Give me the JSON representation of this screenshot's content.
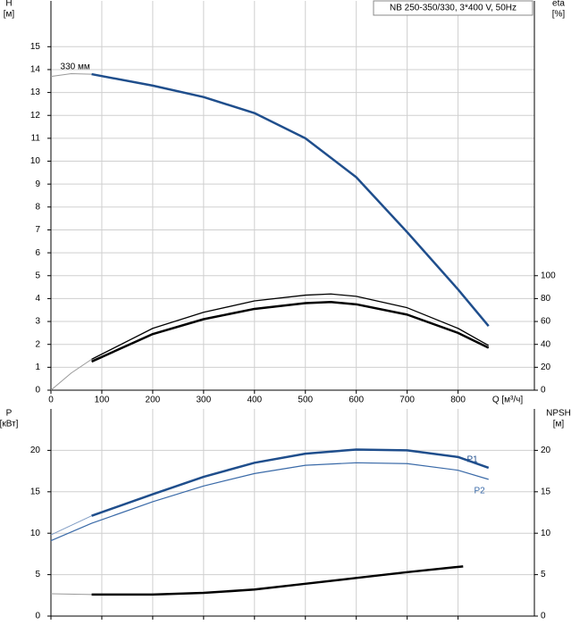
{
  "chart_data": [
    {
      "type": "line",
      "box_label": "NB 250-350/330, 3*400 V, 50Hz",
      "y_label": "H",
      "y_unit": "[м]",
      "y2_label": "eta",
      "y2_unit": "[%]",
      "x_label": "Q [м³/ч]",
      "xlim": [
        0,
        950
      ],
      "xticks": [
        0,
        100,
        200,
        300,
        400,
        500,
        600,
        700,
        800
      ],
      "ylim": [
        0,
        17
      ],
      "yticks": [
        0,
        1,
        2,
        3,
        4,
        5,
        6,
        7,
        8,
        9,
        10,
        11,
        12,
        13,
        14,
        15
      ],
      "y2lim": [
        0,
        340
      ],
      "y2ticks": [
        0,
        20,
        40,
        60,
        80,
        100
      ],
      "grid": true,
      "xtick_labels": true,
      "series": [
        {
          "color": "#999999",
          "width": 1,
          "x": [
            0,
            40,
            80
          ],
          "values": [
            13.7,
            13.82,
            13.8
          ]
        },
        {
          "name": "330 мм",
          "label_at": "start",
          "color": "#1f4e8c",
          "width": 2.5,
          "x": [
            80,
            200,
            300,
            400,
            500,
            600,
            700,
            800,
            860
          ],
          "values": [
            13.8,
            13.3,
            12.8,
            12.1,
            11.0,
            9.3,
            6.9,
            4.4,
            2.8
          ]
        },
        {
          "axis": "y2",
          "color": "#999999",
          "width": 1,
          "x": [
            0,
            40,
            80
          ],
          "values": [
            0,
            15,
            27
          ]
        },
        {
          "axis": "y2",
          "color": "#000000",
          "width": 1.3,
          "x": [
            80,
            200,
            300,
            400,
            500,
            550,
            600,
            700,
            800,
            860
          ],
          "values": [
            27,
            54,
            68,
            78,
            83,
            84,
            82,
            72,
            54,
            39
          ]
        },
        {
          "axis": "y2",
          "color": "#000000",
          "width": 2.5,
          "x": [
            80,
            200,
            300,
            400,
            500,
            550,
            600,
            700,
            800,
            860
          ],
          "values": [
            25,
            49,
            62,
            71,
            76,
            77,
            75,
            66,
            50,
            37
          ]
        }
      ]
    },
    {
      "type": "line",
      "y_label": "P",
      "y_unit": "[кВт]",
      "y2_label": "NPSH",
      "y2_unit": "[м]",
      "xlim": [
        0,
        950
      ],
      "xticks": [
        0,
        100,
        200,
        300,
        400,
        500,
        600,
        700,
        800
      ],
      "ylim": [
        0,
        25
      ],
      "yticks": [
        0,
        5,
        10,
        15,
        20
      ],
      "y2lim": [
        0,
        25
      ],
      "y2ticks": [
        0,
        5,
        10,
        15,
        20
      ],
      "grid": true,
      "xtick_labels": false,
      "series": [
        {
          "color": "#7f9cc4",
          "width": 1,
          "x": [
            0,
            80
          ],
          "values": [
            9.8,
            12.1
          ]
        },
        {
          "name": "P1",
          "label_at": "end",
          "color": "#1f4e8c",
          "width": 2.5,
          "x": [
            80,
            200,
            300,
            400,
            500,
            600,
            700,
            800,
            860
          ],
          "values": [
            12.1,
            14.7,
            16.8,
            18.5,
            19.6,
            20.1,
            20.0,
            19.2,
            17.9
          ]
        },
        {
          "name": "P2",
          "label_at": "end-below",
          "color": "#3a6aa8",
          "width": 1.2,
          "x": [
            0,
            80,
            200,
            300,
            400,
            500,
            600,
            700,
            800,
            860
          ],
          "values": [
            9.1,
            11.2,
            13.8,
            15.7,
            17.2,
            18.2,
            18.5,
            18.4,
            17.6,
            16.5
          ]
        },
        {
          "axis": "y2",
          "color": "#999999",
          "width": 1,
          "x": [
            0,
            80
          ],
          "values": [
            2.7,
            2.6
          ]
        },
        {
          "axis": "y2",
          "color": "#000000",
          "width": 2.5,
          "x": [
            80,
            200,
            300,
            400,
            500,
            600,
            700,
            810
          ],
          "values": [
            2.6,
            2.6,
            2.8,
            3.2,
            3.9,
            4.6,
            5.3,
            6.0
          ]
        }
      ]
    }
  ]
}
